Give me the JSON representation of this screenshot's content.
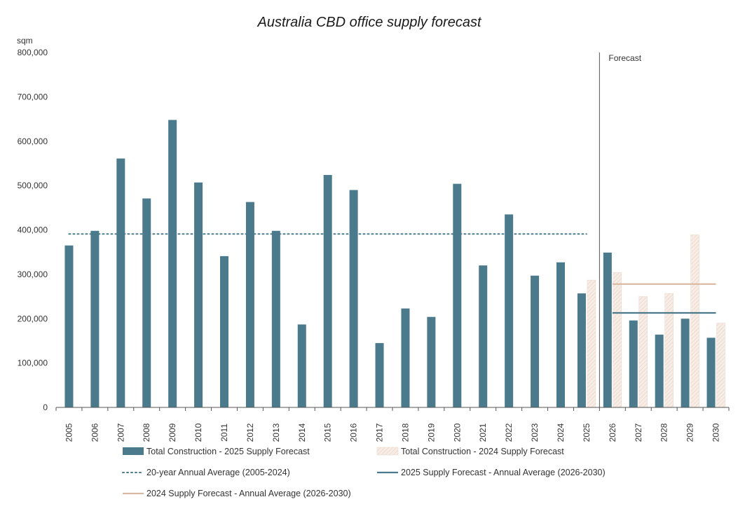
{
  "chart_data": {
    "type": "bar",
    "title": "Australia CBD office supply forecast",
    "ylabel": "sqm",
    "xlabel": "",
    "ylim": [
      0,
      800000
    ],
    "yticks": [
      0,
      100000,
      200000,
      300000,
      400000,
      500000,
      600000,
      700000,
      800000
    ],
    "ytick_labels": [
      "0",
      "100,000",
      "200,000",
      "300,000",
      "400,000",
      "500,000",
      "600,000",
      "700,000",
      "800,000"
    ],
    "categories": [
      "2005",
      "2006",
      "2007",
      "2008",
      "2009",
      "2010",
      "2011",
      "2012",
      "2013",
      "2014",
      "2015",
      "2016",
      "2017",
      "2018",
      "2019",
      "2020",
      "2021",
      "2022",
      "2023",
      "2024",
      "2025",
      "2026",
      "2027",
      "2028",
      "2029",
      "2030"
    ],
    "series": [
      {
        "name": "Total Construction - 2025 Supply Forecast",
        "color": "#4a7a8c",
        "values": [
          365000,
          398000,
          561000,
          471000,
          648000,
          507000,
          341000,
          463000,
          398000,
          187000,
          524000,
          490000,
          145000,
          223000,
          204000,
          504000,
          320000,
          435000,
          297000,
          327000,
          257000,
          349000,
          196000,
          164000,
          200000,
          157000
        ]
      },
      {
        "name": "Total Construction - 2024 Supply Forecast",
        "color": "#f3e6dc",
        "values": [
          null,
          null,
          null,
          null,
          null,
          null,
          null,
          null,
          null,
          null,
          null,
          null,
          null,
          null,
          null,
          null,
          null,
          null,
          null,
          null,
          287000,
          304000,
          250000,
          257000,
          389000,
          190000
        ]
      }
    ],
    "reference_lines": [
      {
        "name": "20-year Annual Average (2005-2024)",
        "value": 391000,
        "from": "2005",
        "to": "2025",
        "style": "dotted",
        "color": "#4a7a8c"
      },
      {
        "name": "2025 Supply Forecast - Annual Average (2026-2030)",
        "value": 213000,
        "from": "2026",
        "to": "2030",
        "style": "solid",
        "color": "#4a7a8c"
      },
      {
        "name": "2024 Supply Forecast - Annual Average (2026-2030)",
        "value": 278000,
        "from": "2026",
        "to": "2030",
        "style": "solid",
        "color": "#d9b8a4"
      }
    ],
    "forecast_marker": {
      "label": "Forecast",
      "at": "2025-2026"
    },
    "grid": false,
    "legend_position": "bottom"
  }
}
